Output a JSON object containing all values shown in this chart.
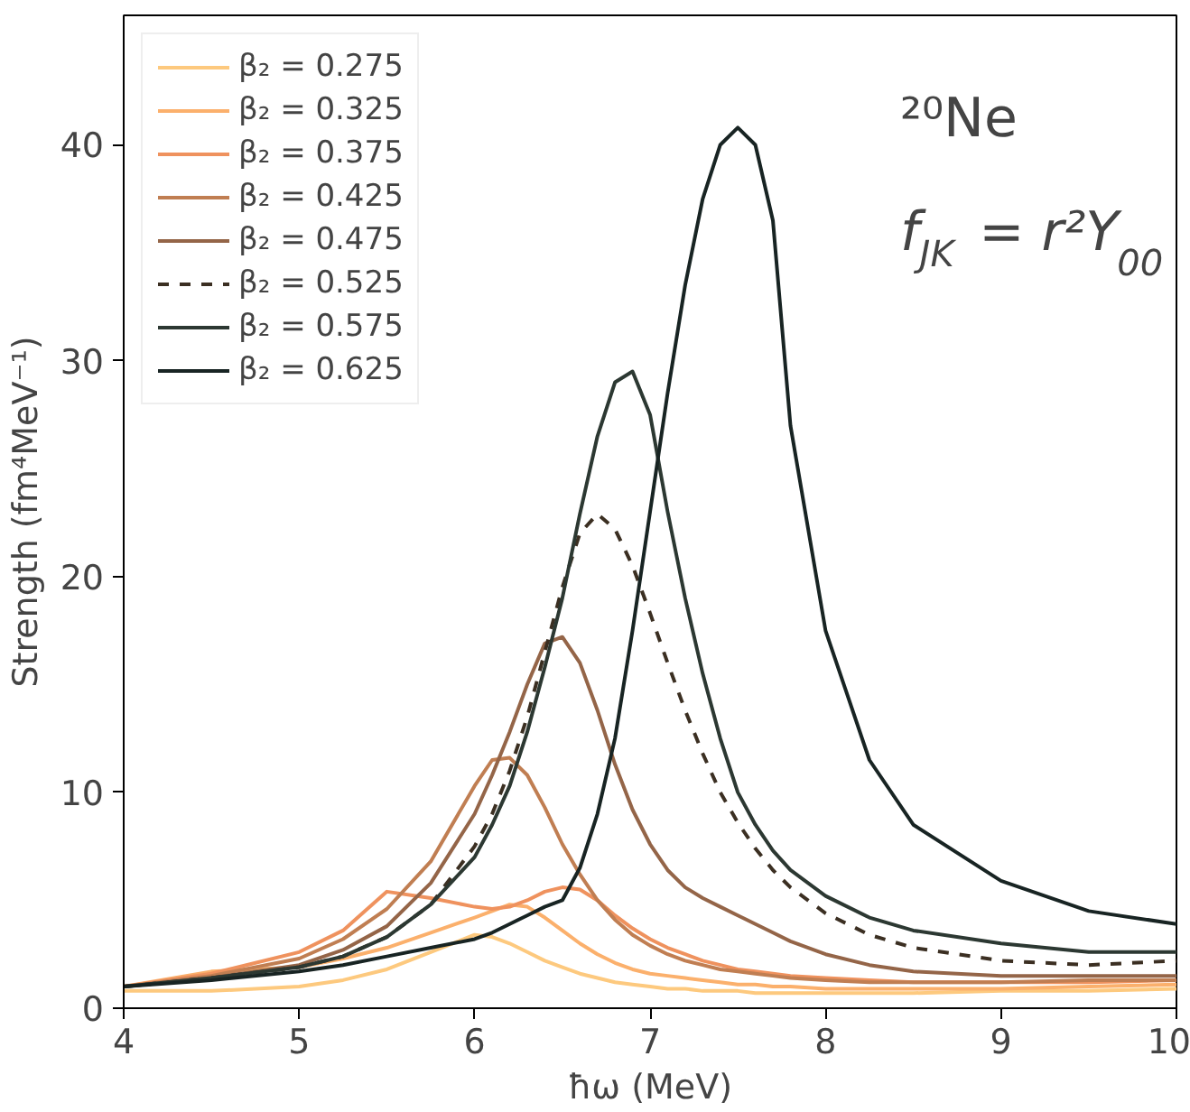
{
  "chart_data": {
    "type": "line",
    "xlabel": "ħω (MeV)",
    "ylabel": "Strength (fm⁴MeV⁻¹)",
    "x": [
      4,
      4.5,
      5,
      5.25,
      5.5,
      5.75,
      6,
      6.1,
      6.2,
      6.3,
      6.4,
      6.5,
      6.6,
      6.7,
      6.8,
      6.9,
      7,
      7.1,
      7.2,
      7.3,
      7.4,
      7.5,
      7.6,
      7.7,
      7.8,
      8,
      8.25,
      8.5,
      9,
      9.5,
      10
    ],
    "series": [
      {
        "name": "β₂ = 0.275",
        "color": "#fdc97e",
        "values": [
          0.8,
          0.8,
          1.0,
          1.3,
          1.8,
          2.6,
          3.4,
          3.3,
          3.0,
          2.6,
          2.2,
          1.9,
          1.6,
          1.4,
          1.2,
          1.1,
          1.0,
          0.9,
          0.9,
          0.8,
          0.8,
          0.8,
          0.7,
          0.7,
          0.7,
          0.7,
          0.7,
          0.7,
          0.8,
          0.8,
          0.9
        ]
      },
      {
        "name": "β₂ = 0.325",
        "color": "#fbb06c",
        "values": [
          1.0,
          1.7,
          1.9,
          2.3,
          2.8,
          3.5,
          4.2,
          4.5,
          4.8,
          4.7,
          4.2,
          3.6,
          3.0,
          2.5,
          2.1,
          1.8,
          1.6,
          1.5,
          1.4,
          1.3,
          1.2,
          1.1,
          1.1,
          1.0,
          1.0,
          0.9,
          0.9,
          0.9,
          0.9,
          1.0,
          1.1
        ]
      },
      {
        "name": "β₂ = 0.375",
        "color": "#ef925e",
        "values": [
          1.0,
          1.6,
          2.6,
          3.6,
          5.4,
          5.1,
          4.7,
          4.6,
          4.7,
          5.0,
          5.4,
          5.6,
          5.5,
          5.0,
          4.3,
          3.7,
          3.2,
          2.8,
          2.5,
          2.2,
          2.0,
          1.8,
          1.7,
          1.6,
          1.5,
          1.4,
          1.3,
          1.2,
          1.2,
          1.2,
          1.3
        ]
      },
      {
        "name": "β₂ = 0.425",
        "color": "#c07e52",
        "values": [
          1.0,
          1.5,
          2.3,
          3.2,
          4.6,
          6.8,
          10.3,
          11.5,
          11.6,
          10.8,
          9.3,
          7.6,
          6.2,
          5.0,
          4.1,
          3.4,
          2.9,
          2.5,
          2.2,
          2.0,
          1.8,
          1.7,
          1.6,
          1.5,
          1.4,
          1.3,
          1.2,
          1.2,
          1.2,
          1.3,
          1.3
        ]
      },
      {
        "name": "β₂ = 0.475",
        "color": "#946548",
        "values": [
          1.0,
          1.4,
          2.0,
          2.7,
          3.8,
          5.8,
          9.0,
          10.8,
          12.8,
          15.0,
          16.9,
          17.2,
          16.0,
          13.8,
          11.3,
          9.2,
          7.6,
          6.4,
          5.6,
          5.1,
          4.7,
          4.3,
          3.9,
          3.5,
          3.1,
          2.5,
          2.0,
          1.7,
          1.5,
          1.5,
          1.5
        ]
      },
      {
        "name": "β₂ = 0.525",
        "color": "#3b2f22",
        "line_style": "dashed",
        "values": [
          1.0,
          1.4,
          1.9,
          2.4,
          3.3,
          4.8,
          7.5,
          9.0,
          11.0,
          13.5,
          16.5,
          19.5,
          22.0,
          22.9,
          22.2,
          20.5,
          18.3,
          16.0,
          13.8,
          11.8,
          10.0,
          8.6,
          7.4,
          6.4,
          5.6,
          4.4,
          3.4,
          2.8,
          2.2,
          2.0,
          2.2
        ]
      },
      {
        "name": "β₂ = 0.575",
        "color": "#2c3832",
        "values": [
          1.0,
          1.4,
          1.9,
          2.4,
          3.3,
          4.8,
          7.0,
          8.5,
          10.3,
          12.8,
          15.8,
          19.0,
          22.9,
          26.5,
          29.0,
          29.5,
          27.5,
          23.0,
          19.0,
          15.5,
          12.5,
          10.0,
          8.5,
          7.3,
          6.4,
          5.2,
          4.2,
          3.6,
          3.0,
          2.6,
          2.6
        ]
      },
      {
        "name": "β₂ = 0.625",
        "color": "#182423",
        "values": [
          1.0,
          1.3,
          1.7,
          2.0,
          2.4,
          2.8,
          3.2,
          3.5,
          3.9,
          4.3,
          4.7,
          5.0,
          6.5,
          9.0,
          12.5,
          17.5,
          23.0,
          28.5,
          33.5,
          37.5,
          40.0,
          40.8,
          40.0,
          36.5,
          27.0,
          17.5,
          11.5,
          8.5,
          5.9,
          4.5,
          3.9
        ]
      }
    ],
    "annotations": [
      "²⁰Ne",
      "f$_{JK}$ = r²Y$_{00}$"
    ],
    "xlim": [
      4,
      10
    ],
    "ylim": [
      0,
      46
    ],
    "xticks": [
      4,
      5,
      6,
      7,
      8,
      9,
      10
    ],
    "yticks": [
      0,
      10,
      20,
      30,
      40
    ],
    "grid": false,
    "legend": "top left",
    "line_style": "solid"
  }
}
